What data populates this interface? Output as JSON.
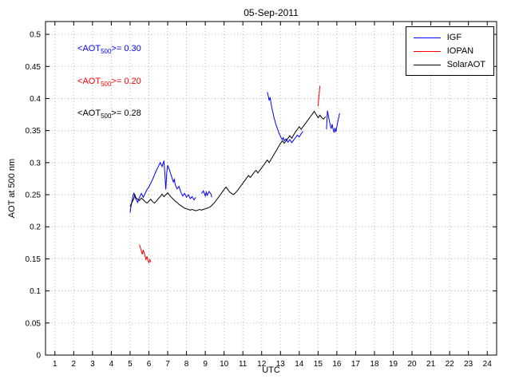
{
  "chart_data": {
    "type": "line",
    "title": "05-Sep-2011",
    "xlabel": "UTC",
    "ylabel": "AOT at 500 nm",
    "xlim": [
      0.5,
      24.5
    ],
    "ylim": [
      0,
      0.52
    ],
    "grid": true,
    "xticks": [
      1,
      2,
      3,
      4,
      5,
      6,
      7,
      8,
      9,
      10,
      11,
      12,
      13,
      14,
      15,
      16,
      17,
      18,
      19,
      20,
      21,
      22,
      23,
      24
    ],
    "yticks": [
      0,
      0.05,
      0.1,
      0.15,
      0.2,
      0.25,
      0.3,
      0.35,
      0.4,
      0.45,
      0.5
    ],
    "ytick_labels": [
      "0",
      "0.05",
      "0.1",
      "0.15",
      "0.2",
      "0.25",
      "0.3",
      "0.35",
      "0.4",
      "0.45",
      "0.5"
    ],
    "legend": {
      "position": "top-right",
      "entries": [
        {
          "label": "IGF",
          "color": "#0000ff"
        },
        {
          "label": "IOPAN",
          "color": "#ff0000"
        },
        {
          "label": "SolarAOT",
          "color": "#000000"
        }
      ]
    },
    "annotations": [
      {
        "prefix": "<AOT",
        "sub": "500",
        "suffix": ">= 0.30",
        "color": "#0000ff",
        "x": 2.2,
        "y": 0.4765
      },
      {
        "prefix": "<AOT",
        "sub": "500",
        "suffix": ">= 0.20",
        "color": "#ff0000",
        "x": 2.2,
        "y": 0.4254
      },
      {
        "prefix": "<AOT",
        "sub": "500",
        "suffix": ">= 0.28",
        "color": "#000000",
        "x": 2.2,
        "y": 0.3757
      }
    ],
    "series": [
      {
        "name": "IGF",
        "color": "#0000ff",
        "segments": [
          [
            [
              5.0,
              0.222
            ],
            [
              5.05,
              0.232
            ],
            [
              5.1,
              0.24
            ],
            [
              5.15,
              0.248
            ],
            [
              5.2,
              0.252
            ],
            [
              5.3,
              0.244
            ],
            [
              5.4,
              0.238
            ],
            [
              5.5,
              0.246
            ],
            [
              5.6,
              0.252
            ],
            [
              5.7,
              0.246
            ],
            [
              5.8,
              0.252
            ],
            [
              5.9,
              0.258
            ],
            [
              6.0,
              0.262
            ],
            [
              6.1,
              0.268
            ],
            [
              6.2,
              0.274
            ],
            [
              6.3,
              0.281
            ],
            [
              6.4,
              0.288
            ],
            [
              6.5,
              0.294
            ],
            [
              6.6,
              0.3
            ],
            [
              6.7,
              0.294
            ],
            [
              6.75,
              0.299
            ],
            [
              6.8,
              0.302
            ],
            [
              6.85,
              0.282
            ],
            [
              6.9,
              0.258
            ],
            [
              6.95,
              0.284
            ],
            [
              7.0,
              0.296
            ],
            [
              7.1,
              0.288
            ],
            [
              7.2,
              0.279
            ],
            [
              7.3,
              0.27
            ],
            [
              7.35,
              0.274
            ],
            [
              7.4,
              0.266
            ],
            [
              7.5,
              0.259
            ],
            [
              7.6,
              0.263
            ],
            [
              7.7,
              0.254
            ],
            [
              7.8,
              0.248
            ],
            [
              7.9,
              0.252
            ],
            [
              8.0,
              0.246
            ],
            [
              8.1,
              0.25
            ],
            [
              8.2,
              0.244
            ],
            [
              8.3,
              0.247
            ],
            [
              8.4,
              0.242
            ],
            [
              8.5,
              0.246
            ]
          ],
          [
            [
              8.8,
              0.252
            ],
            [
              8.9,
              0.256
            ],
            [
              9.0,
              0.248
            ],
            [
              9.05,
              0.254
            ],
            [
              9.1,
              0.249
            ],
            [
              9.2,
              0.255
            ],
            [
              9.3,
              0.251
            ],
            [
              9.35,
              0.246
            ]
          ],
          [
            [
              12.3,
              0.41
            ],
            [
              12.35,
              0.404
            ],
            [
              12.4,
              0.397
            ],
            [
              12.45,
              0.402
            ],
            [
              12.5,
              0.392
            ],
            [
              12.55,
              0.384
            ],
            [
              12.6,
              0.378
            ],
            [
              12.65,
              0.371
            ],
            [
              12.7,
              0.366
            ],
            [
              12.75,
              0.36
            ],
            [
              12.8,
              0.356
            ],
            [
              12.85,
              0.352
            ],
            [
              12.9,
              0.348
            ],
            [
              12.95,
              0.344
            ],
            [
              13.0,
              0.341
            ],
            [
              13.05,
              0.338
            ],
            [
              13.1,
              0.336
            ],
            [
              13.15,
              0.339
            ],
            [
              13.2,
              0.334
            ],
            [
              13.3,
              0.337
            ],
            [
              13.4,
              0.332
            ],
            [
              13.5,
              0.336
            ],
            [
              13.6,
              0.331
            ],
            [
              13.7,
              0.335
            ],
            [
              13.8,
              0.339
            ],
            [
              13.9,
              0.343
            ],
            [
              14.0,
              0.34
            ],
            [
              14.1,
              0.345
            ],
            [
              14.2,
              0.349
            ]
          ],
          [
            [
              15.45,
              0.352
            ],
            [
              15.5,
              0.381
            ],
            [
              15.55,
              0.373
            ],
            [
              15.6,
              0.365
            ],
            [
              15.65,
              0.358
            ],
            [
              15.7,
              0.353
            ],
            [
              15.75,
              0.36
            ],
            [
              15.8,
              0.352
            ],
            [
              15.85,
              0.347
            ],
            [
              15.9,
              0.354
            ],
            [
              15.95,
              0.348
            ],
            [
              16.0,
              0.356
            ],
            [
              16.05,
              0.364
            ],
            [
              16.1,
              0.371
            ],
            [
              16.15,
              0.377
            ]
          ]
        ]
      },
      {
        "name": "IOPAN",
        "color": "#ff0000",
        "segments": [
          [
            [
              5.5,
              0.172
            ],
            [
              5.55,
              0.167
            ],
            [
              5.6,
              0.162
            ],
            [
              5.65,
              0.157
            ],
            [
              5.7,
              0.164
            ],
            [
              5.75,
              0.159
            ],
            [
              5.8,
              0.154
            ],
            [
              5.85,
              0.149
            ],
            [
              5.9,
              0.154
            ],
            [
              5.95,
              0.147
            ],
            [
              6.0,
              0.144
            ],
            [
              6.05,
              0.149
            ],
            [
              6.1,
              0.145
            ]
          ],
          [
            [
              15.0,
              0.388
            ],
            [
              15.02,
              0.394
            ],
            [
              15.04,
              0.401
            ],
            [
              15.06,
              0.407
            ],
            [
              15.08,
              0.414
            ],
            [
              15.1,
              0.42
            ]
          ]
        ]
      },
      {
        "name": "SolarAOT",
        "color": "#000000",
        "segments": [
          [
            [
              5.0,
              0.232
            ],
            [
              5.1,
              0.238
            ],
            [
              5.2,
              0.244
            ],
            [
              5.25,
              0.25
            ],
            [
              5.3,
              0.246
            ],
            [
              5.4,
              0.243
            ],
            [
              5.5,
              0.241
            ],
            [
              5.6,
              0.245
            ],
            [
              5.7,
              0.242
            ],
            [
              5.8,
              0.239
            ],
            [
              5.9,
              0.237
            ],
            [
              6.0,
              0.24
            ],
            [
              6.1,
              0.243
            ],
            [
              6.2,
              0.239
            ],
            [
              6.3,
              0.237
            ],
            [
              6.4,
              0.24
            ],
            [
              6.5,
              0.244
            ],
            [
              6.6,
              0.247
            ],
            [
              6.7,
              0.251
            ],
            [
              6.8,
              0.247
            ],
            [
              6.9,
              0.25
            ],
            [
              7.0,
              0.253
            ],
            [
              7.1,
              0.249
            ],
            [
              7.2,
              0.246
            ],
            [
              7.3,
              0.243
            ],
            [
              7.4,
              0.24
            ],
            [
              7.5,
              0.238
            ],
            [
              7.6,
              0.235
            ],
            [
              7.7,
              0.233
            ],
            [
              7.8,
              0.231
            ],
            [
              7.9,
              0.229
            ],
            [
              8.0,
              0.228
            ],
            [
              8.1,
              0.227
            ],
            [
              8.2,
              0.226
            ],
            [
              8.3,
              0.227
            ],
            [
              8.4,
              0.226
            ],
            [
              8.5,
              0.225
            ],
            [
              8.6,
              0.226
            ],
            [
              8.7,
              0.227
            ],
            [
              8.8,
              0.226
            ],
            [
              8.9,
              0.227
            ],
            [
              9.0,
              0.228
            ],
            [
              9.1,
              0.229
            ],
            [
              9.2,
              0.23
            ],
            [
              9.3,
              0.232
            ],
            [
              9.4,
              0.235
            ],
            [
              9.5,
              0.238
            ],
            [
              9.6,
              0.242
            ],
            [
              9.7,
              0.246
            ],
            [
              9.8,
              0.25
            ],
            [
              9.9,
              0.254
            ],
            [
              10.0,
              0.258
            ],
            [
              10.1,
              0.262
            ],
            [
              10.2,
              0.258
            ],
            [
              10.3,
              0.254
            ],
            [
              10.4,
              0.252
            ],
            [
              10.5,
              0.25
            ],
            [
              10.6,
              0.253
            ],
            [
              10.7,
              0.256
            ],
            [
              10.8,
              0.26
            ],
            [
              10.9,
              0.264
            ],
            [
              11.0,
              0.268
            ],
            [
              11.1,
              0.272
            ],
            [
              11.2,
              0.276
            ],
            [
              11.3,
              0.28
            ],
            [
              11.4,
              0.277
            ],
            [
              11.5,
              0.281
            ],
            [
              11.6,
              0.285
            ],
            [
              11.7,
              0.288
            ],
            [
              11.8,
              0.284
            ],
            [
              11.9,
              0.288
            ],
            [
              12.0,
              0.292
            ],
            [
              12.1,
              0.296
            ],
            [
              12.2,
              0.3
            ],
            [
              12.3,
              0.304
            ],
            [
              12.4,
              0.3
            ],
            [
              12.5,
              0.305
            ],
            [
              12.6,
              0.31
            ],
            [
              12.7,
              0.315
            ],
            [
              12.8,
              0.32
            ],
            [
              12.9,
              0.325
            ],
            [
              13.0,
              0.33
            ],
            [
              13.1,
              0.334
            ],
            [
              13.2,
              0.33
            ],
            [
              13.3,
              0.334
            ],
            [
              13.4,
              0.338
            ],
            [
              13.5,
              0.342
            ],
            [
              13.6,
              0.338
            ],
            [
              13.7,
              0.343
            ],
            [
              13.8,
              0.348
            ],
            [
              13.9,
              0.352
            ],
            [
              14.0,
              0.356
            ],
            [
              14.1,
              0.352
            ],
            [
              14.2,
              0.356
            ],
            [
              14.3,
              0.36
            ],
            [
              14.4,
              0.364
            ],
            [
              14.5,
              0.368
            ],
            [
              14.6,
              0.372
            ],
            [
              14.7,
              0.376
            ],
            [
              14.8,
              0.38
            ],
            [
              14.9,
              0.375
            ],
            [
              15.0,
              0.37
            ],
            [
              15.1,
              0.374
            ],
            [
              15.2,
              0.37
            ],
            [
              15.3,
              0.368
            ],
            [
              15.4,
              0.372
            ]
          ]
        ]
      }
    ]
  }
}
